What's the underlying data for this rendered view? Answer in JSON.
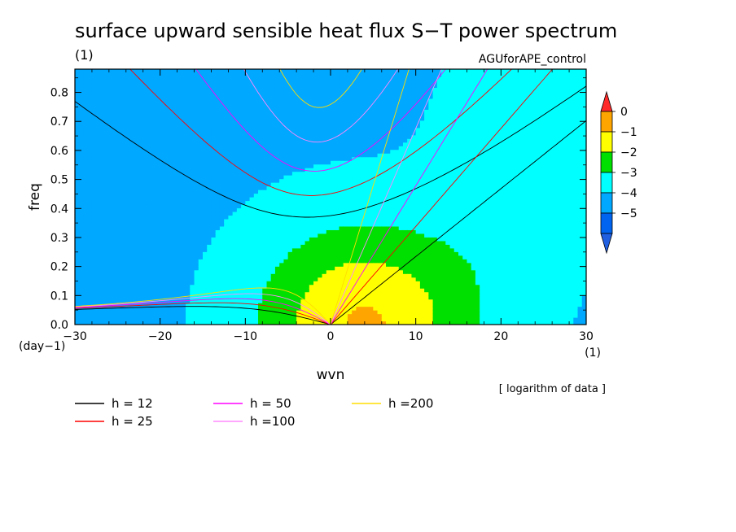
{
  "title": "surface upward sensible heat flux S−T power spectrum",
  "units": "(1)",
  "experiment": "AGUforAPE_control",
  "note": "[ logarithm of data ]",
  "colorbar": {
    "labels": [
      "0",
      "−1",
      "−2",
      "−3",
      "−4",
      "−5"
    ],
    "colors": [
      "#ff0000",
      "#ffa500",
      "#ffff00",
      "#00e000",
      "#00ffff",
      "#00a8ff",
      "#0064f0",
      "#ff2a2a",
      "#1f5fe0"
    ]
  },
  "legend": [
    {
      "label": "h = 12",
      "color": "#000000"
    },
    {
      "label": "h = 25",
      "color": "#ff0000"
    },
    {
      "label": "h = 50",
      "color": "#ff00ff"
    },
    {
      "label": "h =100",
      "color": "#ff88ff"
    },
    {
      "label": "h =200",
      "color": "#ffdd00"
    }
  ],
  "chart_data": {
    "type": "heatmap",
    "xlabel": "wvn",
    "ylabel": "freq",
    "x_unit": "(1)",
    "y_unit": "(day−1)",
    "xlim": [
      -30,
      30
    ],
    "ylim": [
      0,
      0.88
    ],
    "xticks": [
      -30,
      -20,
      -10,
      0,
      10,
      20,
      30
    ],
    "yticks": [
      0.0,
      0.1,
      0.2,
      0.3,
      0.4,
      0.5,
      0.6,
      0.7,
      0.8
    ],
    "ytick_labels": [
      "0.0",
      "0.1",
      "0.2",
      "0.3",
      "0.4",
      "0.5",
      "0.6",
      "0.7",
      "0.8"
    ],
    "levels": [
      -5,
      -4,
      -3,
      -2,
      -1,
      0
    ],
    "field_peak": {
      "wvn": 5,
      "freq": 0.05,
      "log_value": 0.3
    },
    "dispersion_curves_h": [
      12,
      25,
      50,
      100,
      200
    ]
  }
}
